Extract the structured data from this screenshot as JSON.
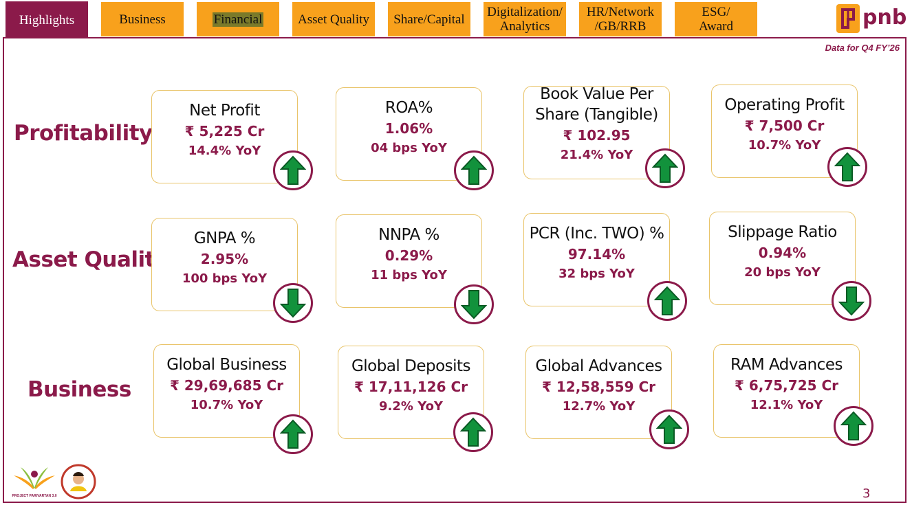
{
  "tabs": [
    {
      "label": "Highlights",
      "active": true
    },
    {
      "label": "Business",
      "active": false
    },
    {
      "label": "Financial",
      "active": false
    },
    {
      "label": "Asset Quality",
      "active": false
    },
    {
      "label": "Share/Capital",
      "active": false
    },
    {
      "label_line1": "Digitalization/",
      "label_line2": "Analytics",
      "active": false
    },
    {
      "label_line1": "HR/Network",
      "label_line2": "/GB/RRB",
      "active": false
    },
    {
      "label_line1": "ESG/",
      "label_line2": "Award",
      "active": false
    }
  ],
  "brand": {
    "logo_text": "pnb",
    "accent": "#8b1a4a",
    "tab_color": "#f8a11c"
  },
  "data_note": "Data for Q4 FY’26",
  "rows": [
    {
      "label": "Profitability",
      "cards": [
        {
          "title": "Net Profit",
          "value": "₹ 5,225 Cr",
          "yoy": "14.4% YoY",
          "trend": "up"
        },
        {
          "title": "ROA%",
          "value": "1.06%",
          "yoy": "04 bps YoY",
          "trend": "up"
        },
        {
          "title_line1": "Book Value Per",
          "title_line2": "Share (Tangible)",
          "value": "₹ 102.95",
          "yoy": "21.4% YoY",
          "trend": "up"
        },
        {
          "title": "Operating Profit",
          "value": "₹ 7,500 Cr",
          "yoy": "10.7% YoY",
          "trend": "up"
        }
      ]
    },
    {
      "label": "Asset Quality",
      "cards": [
        {
          "title": "GNPA %",
          "value": "2.95%",
          "yoy": "100 bps YoY",
          "trend": "down"
        },
        {
          "title": "NNPA %",
          "value": "0.29%",
          "yoy": "11 bps YoY",
          "trend": "down"
        },
        {
          "title": "PCR (Inc. TWO) %",
          "value": "97.14%",
          "yoy": "32 bps YoY",
          "trend": "up"
        },
        {
          "title": "Slippage Ratio",
          "value": "0.94%",
          "yoy": "20 bps YoY",
          "trend": "down"
        }
      ]
    },
    {
      "label": "Business",
      "cards": [
        {
          "title": "Global Business",
          "value": "₹ 29,69,685 Cr",
          "yoy": "10.7% YoY",
          "trend": "up"
        },
        {
          "title": "Global Deposits",
          "value": "₹ 17,11,126 Cr",
          "yoy": "9.2% YoY",
          "trend": "up"
        },
        {
          "title": "Global Advances",
          "value": "₹ 12,58,559 Cr",
          "yoy": "12.7% YoY",
          "trend": "up"
        },
        {
          "title": "RAM Advances",
          "value": "₹ 6,75,725 Cr",
          "yoy": "12.1% YoY",
          "trend": "up"
        }
      ]
    }
  ],
  "footer": {
    "logo1": "PROJECT PARIVARTAN 3.0",
    "page_number": "3"
  }
}
